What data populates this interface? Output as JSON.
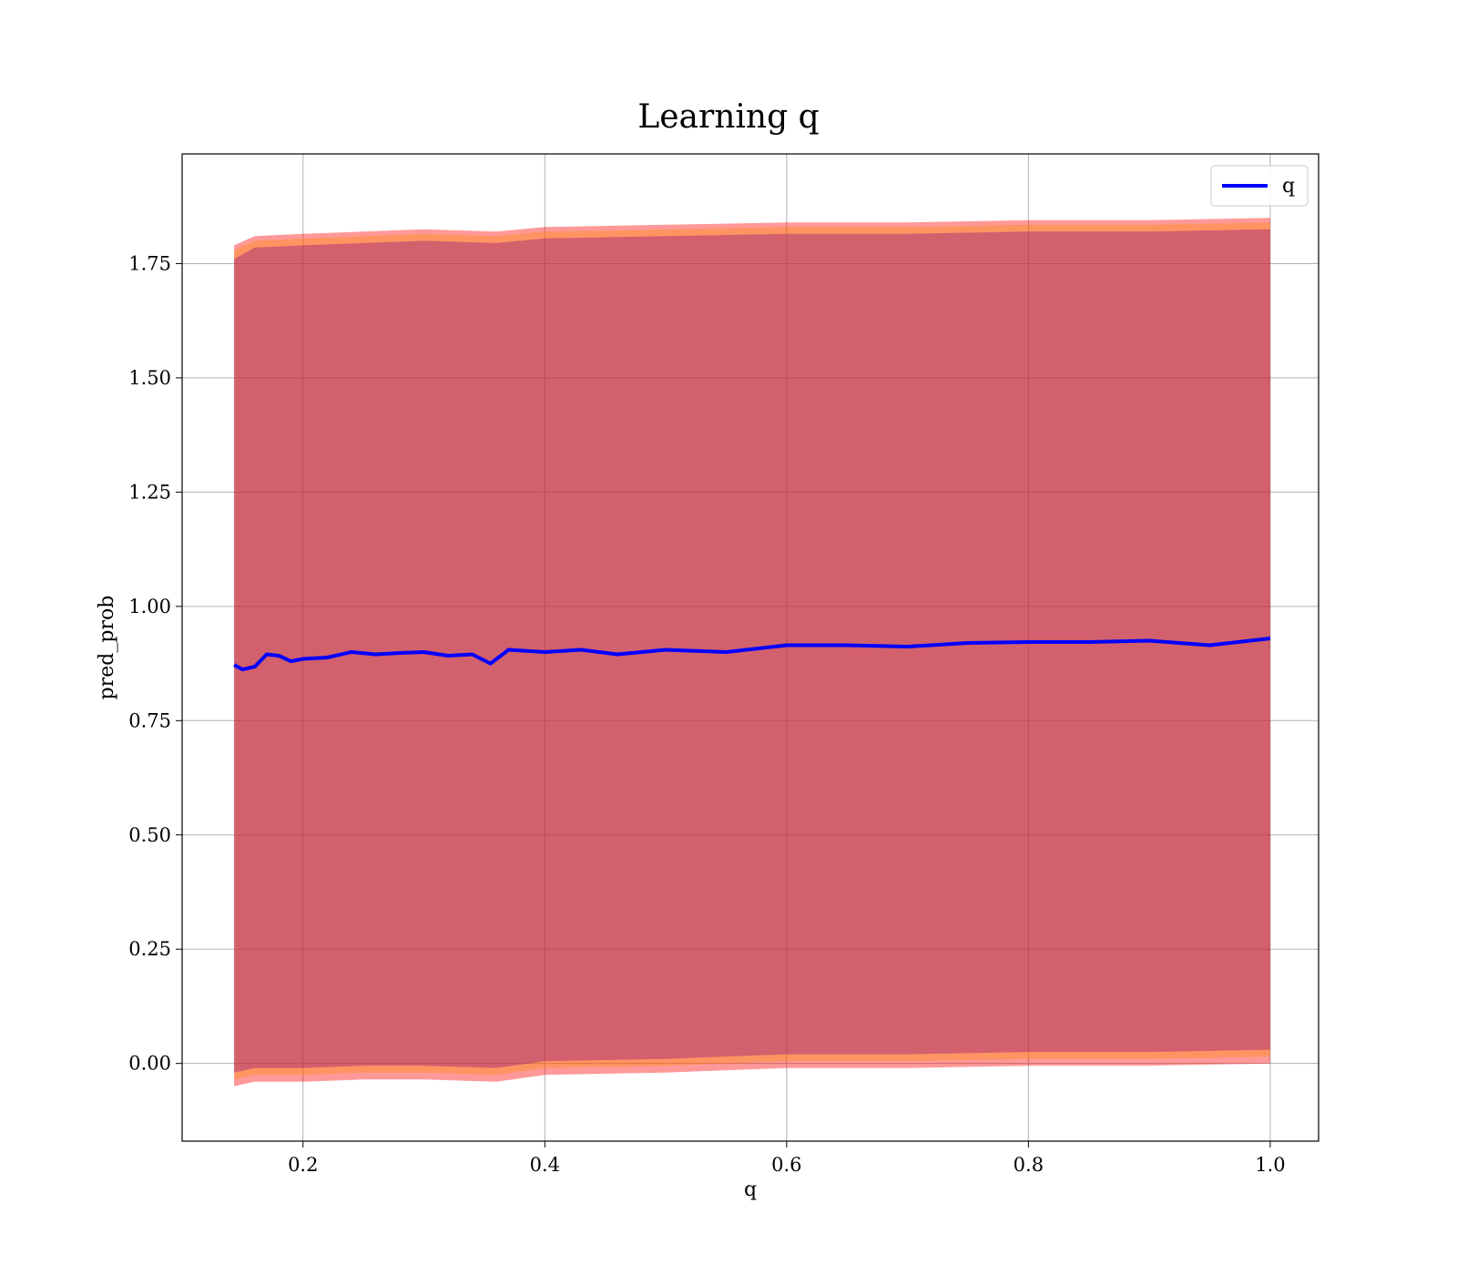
{
  "chart_data": {
    "type": "line",
    "title": "Learning q",
    "xlabel": "q",
    "ylabel": "pred_prob",
    "xlim": [
      0.1,
      1.04
    ],
    "ylim": [
      -0.17,
      1.99
    ],
    "xticks": [
      0.2,
      0.4,
      0.6,
      0.8,
      1.0
    ],
    "xtick_labels": [
      "0.2",
      "0.4",
      "0.6",
      "0.8",
      "1.0"
    ],
    "yticks": [
      0.0,
      0.25,
      0.5,
      0.75,
      1.0,
      1.25,
      1.5,
      1.75
    ],
    "ytick_labels": [
      "0.00",
      "0.25",
      "0.50",
      "0.75",
      "1.00",
      "1.25",
      "1.50",
      "1.75"
    ],
    "grid": true,
    "legend": {
      "placement": "top-right",
      "entries": [
        {
          "label": "q",
          "color": "#0000ff"
        }
      ]
    },
    "series": [
      {
        "name": "q",
        "color": "#0000ff",
        "x": [
          0.143,
          0.15,
          0.16,
          0.17,
          0.18,
          0.19,
          0.2,
          0.22,
          0.24,
          0.26,
          0.28,
          0.3,
          0.32,
          0.34,
          0.355,
          0.37,
          0.4,
          0.43,
          0.46,
          0.5,
          0.55,
          0.6,
          0.65,
          0.7,
          0.75,
          0.8,
          0.85,
          0.9,
          0.95,
          1.0
        ],
        "values": [
          0.872,
          0.862,
          0.868,
          0.895,
          0.892,
          0.88,
          0.885,
          0.888,
          0.9,
          0.895,
          0.898,
          0.9,
          0.892,
          0.895,
          0.875,
          0.905,
          0.9,
          0.905,
          0.895,
          0.905,
          0.9,
          0.915,
          0.915,
          0.912,
          0.92,
          0.922,
          0.922,
          0.925,
          0.915,
          0.93
        ]
      }
    ],
    "bands": [
      {
        "color": "#ff0000",
        "alpha": 0.4,
        "x": [
          0.143,
          0.16,
          0.2,
          0.25,
          0.3,
          0.36,
          0.4,
          0.5,
          0.6,
          0.7,
          0.8,
          0.9,
          1.0
        ],
        "upper": [
          1.79,
          1.81,
          1.815,
          1.82,
          1.825,
          1.82,
          1.83,
          1.835,
          1.84,
          1.84,
          1.845,
          1.845,
          1.85
        ],
        "lower": [
          -0.05,
          -0.04,
          -0.04,
          -0.035,
          -0.035,
          -0.04,
          -0.025,
          -0.02,
          -0.01,
          -0.01,
          -0.005,
          -0.005,
          0.0
        ]
      },
      {
        "color": "#ff8c00",
        "alpha": 0.35,
        "x": [
          0.143,
          0.16,
          0.2,
          0.25,
          0.3,
          0.36,
          0.4,
          0.5,
          0.6,
          0.7,
          0.8,
          0.9,
          1.0
        ],
        "upper": [
          1.78,
          1.8,
          1.805,
          1.81,
          1.815,
          1.81,
          1.82,
          1.825,
          1.83,
          1.83,
          1.835,
          1.835,
          1.84
        ],
        "lower": [
          -0.035,
          -0.025,
          -0.025,
          -0.02,
          -0.02,
          -0.025,
          -0.01,
          -0.005,
          0.005,
          0.005,
          0.01,
          0.01,
          0.015
        ]
      },
      {
        "color": "#800080",
        "alpha": 0.35,
        "x": [
          0.143,
          0.16,
          0.2,
          0.25,
          0.3,
          0.36,
          0.4,
          0.5,
          0.6,
          0.7,
          0.8,
          0.9,
          1.0
        ],
        "upper": [
          1.76,
          1.785,
          1.79,
          1.795,
          1.8,
          1.795,
          1.805,
          1.81,
          1.815,
          1.815,
          1.82,
          1.82,
          1.825
        ],
        "lower": [
          -0.02,
          -0.01,
          -0.01,
          -0.005,
          -0.005,
          -0.01,
          0.005,
          0.01,
          0.02,
          0.02,
          0.025,
          0.025,
          0.03
        ]
      }
    ]
  }
}
